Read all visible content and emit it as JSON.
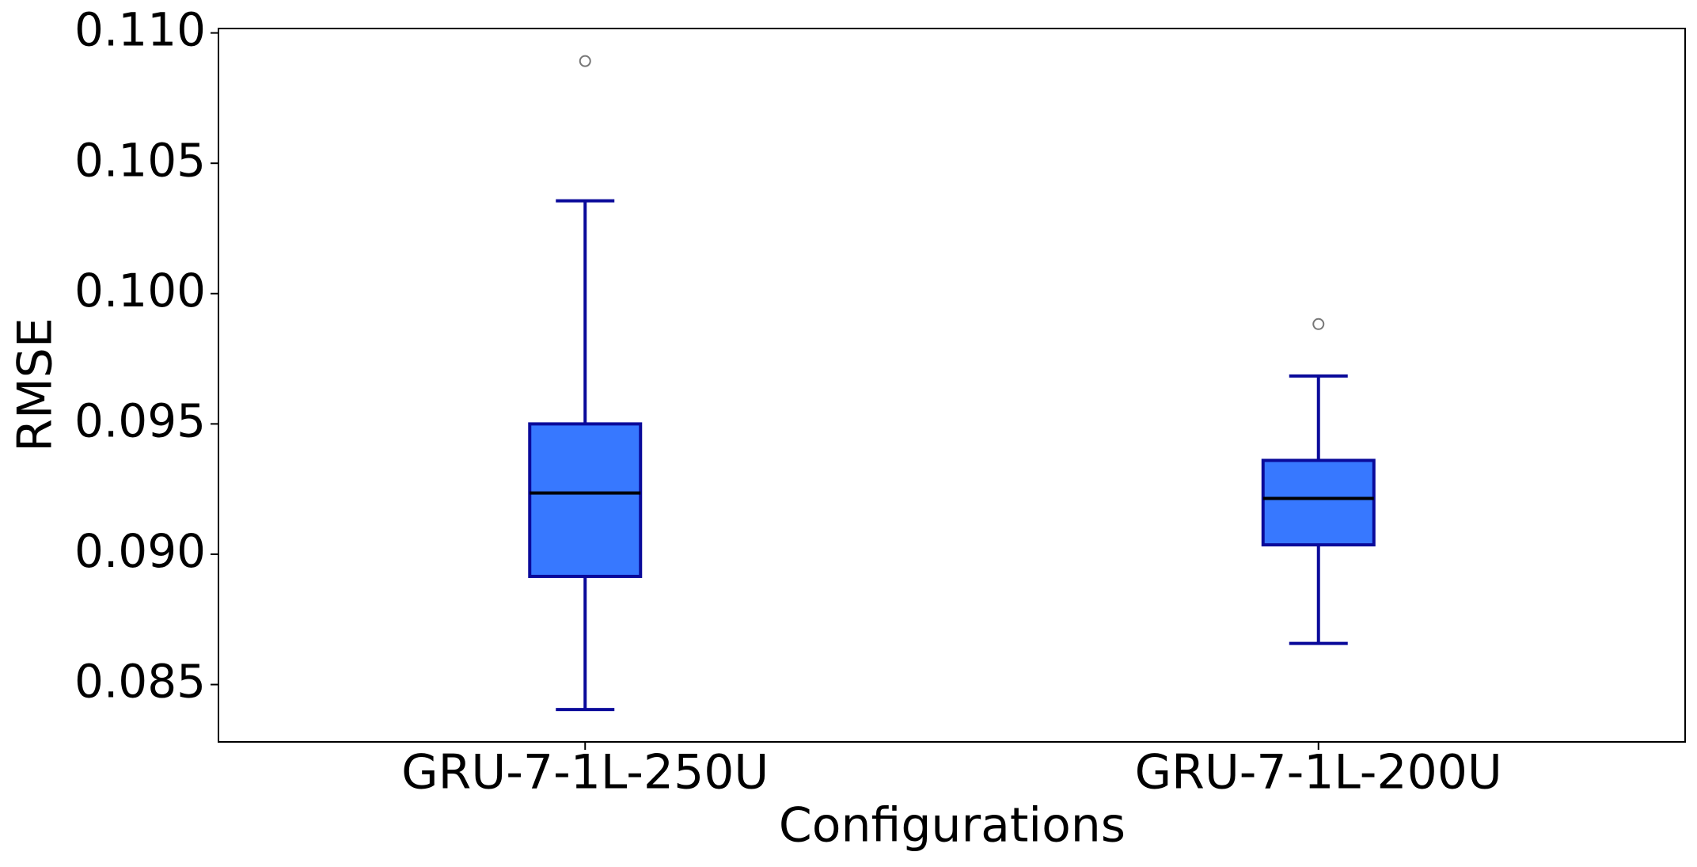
{
  "chart_data": {
    "type": "box",
    "xlabel": "Configurations",
    "ylabel": "RMSE",
    "categories": [
      "GRU-7-1L-250U",
      "GRU-7-1L-200U"
    ],
    "boxes": [
      {
        "whislo": 0.08404,
        "q1": 0.08915,
        "med": 0.09235,
        "q3": 0.095,
        "whishi": 0.10356,
        "fliers": [
          0.10892
        ]
      },
      {
        "whislo": 0.08658,
        "q1": 0.09036,
        "med": 0.09214,
        "q3": 0.0936,
        "whishi": 0.09684,
        "fliers": [
          0.09883
        ]
      }
    ],
    "box_color": "#3778ff",
    "edge_color": "#0a0a9a",
    "median_color": "#000000",
    "flier_color": "#777777",
    "ylim": [
      0.0828,
      0.11017
    ],
    "yticks": [
      0.085,
      {
        "value": 0.09,
        "label": "0.090"
      },
      0.095,
      {
        "value": 0.1,
        "label": "0.100"
      },
      0.105,
      {
        "value": 0.11,
        "label": "0.110"
      }
    ],
    "grid": false
  }
}
